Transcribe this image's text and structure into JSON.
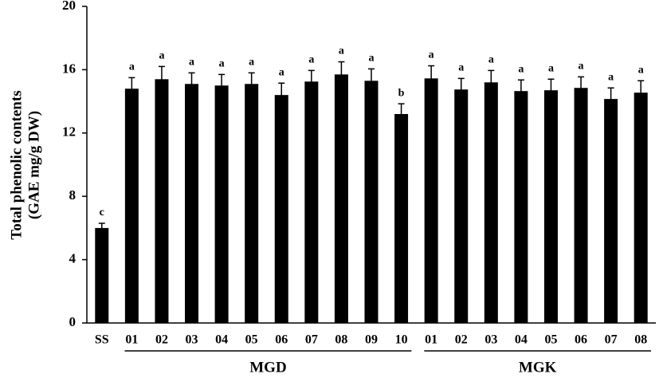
{
  "chart_data": {
    "type": "bar",
    "ylabel": [
      "Total phenolic contents",
      "(GAE mg/g DW)"
    ],
    "categories": [
      "SS",
      "01",
      "02",
      "03",
      "04",
      "05",
      "06",
      "07",
      "08",
      "09",
      "10",
      "01",
      "02",
      "03",
      "04",
      "05",
      "06",
      "07",
      "08"
    ],
    "category_groups": [
      null,
      "MGD",
      "MGD",
      "MGD",
      "MGD",
      "MGD",
      "MGD",
      "MGD",
      "MGD",
      "MGD",
      "MGD",
      "MGK",
      "MGK",
      "MGK",
      "MGK",
      "MGK",
      "MGK",
      "MGK",
      "MGK"
    ],
    "series": [
      {
        "color": "#000000",
        "values": [
          6.0,
          14.8,
          15.4,
          15.1,
          15.0,
          15.1,
          14.4,
          15.25,
          15.7,
          15.3,
          13.2,
          15.45,
          14.75,
          15.2,
          14.65,
          14.7,
          14.85,
          14.15,
          14.55
        ],
        "errors": [
          0.3,
          0.7,
          0.8,
          0.7,
          0.7,
          0.7,
          0.75,
          0.7,
          0.8,
          0.75,
          0.65,
          0.8,
          0.7,
          0.75,
          0.7,
          0.7,
          0.7,
          0.7,
          0.75
        ],
        "annotations": [
          "c",
          "a",
          "a",
          "a",
          "a",
          "a",
          "a",
          "a",
          "a",
          "a",
          "b",
          "a",
          "a",
          "a",
          "a",
          "a",
          "a",
          "a",
          "a"
        ]
      }
    ],
    "ylim": [
      0,
      20
    ],
    "yticks": [
      0,
      4,
      8,
      12,
      16,
      20
    ]
  }
}
